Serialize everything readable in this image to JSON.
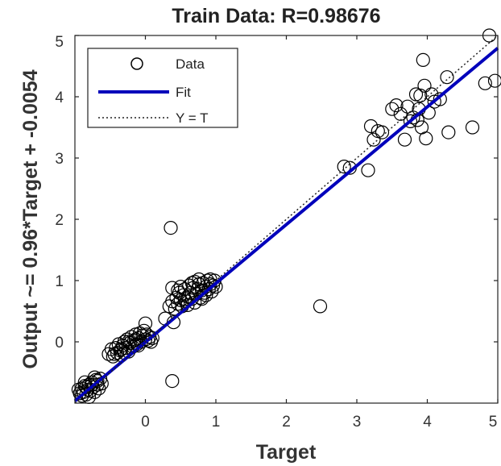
{
  "chart_data": {
    "type": "scatter",
    "title": "Train Data: R=0.98676",
    "xlabel": "Target",
    "ylabel": "Output ~= 0.96*Target + -0.0054",
    "xlim": [
      -1,
      5
    ],
    "ylim": [
      -1,
      5
    ],
    "xticks": [
      "0",
      "1",
      "2",
      "3",
      "4",
      "5"
    ],
    "yticks": [
      "0",
      "1",
      "2",
      "3",
      "4",
      "5"
    ],
    "grid": false,
    "legend_position": "top-left",
    "legend": [
      "Data",
      "Fit",
      "Y = T"
    ],
    "fit": {
      "slope": 0.96,
      "intercept": -0.0054
    },
    "series": [
      {
        "name": "Data",
        "marker": "circle-open",
        "color": "#000000",
        "points": [
          [
            -0.95,
            -0.78
          ],
          [
            -0.93,
            -0.84
          ],
          [
            -0.9,
            -0.76
          ],
          [
            -0.88,
            -0.82
          ],
          [
            -0.86,
            -0.72
          ],
          [
            -0.84,
            -0.86
          ],
          [
            -0.82,
            -0.78
          ],
          [
            -0.8,
            -0.7
          ],
          [
            -0.78,
            -0.8
          ],
          [
            -0.76,
            -0.66
          ],
          [
            -0.74,
            -0.74
          ],
          [
            -0.72,
            -0.82
          ],
          [
            -0.7,
            -0.62
          ],
          [
            -0.68,
            -0.7
          ],
          [
            -0.66,
            -0.76
          ],
          [
            -0.64,
            -0.6
          ],
          [
            -0.62,
            -0.68
          ],
          [
            -0.72,
            -0.58
          ],
          [
            -0.86,
            -0.66
          ],
          [
            -0.9,
            -0.88
          ],
          [
            -0.8,
            -0.9
          ],
          [
            -0.68,
            -0.64
          ],
          [
            -0.76,
            -0.7
          ],
          [
            -0.84,
            -0.74
          ],
          [
            -0.52,
            -0.2
          ],
          [
            -0.48,
            -0.12
          ],
          [
            -0.46,
            -0.24
          ],
          [
            -0.42,
            -0.1
          ],
          [
            -0.4,
            -0.18
          ],
          [
            -0.38,
            -0.04
          ],
          [
            -0.36,
            -0.14
          ],
          [
            -0.34,
            -0.22
          ],
          [
            -0.32,
            -0.06
          ],
          [
            -0.3,
            0.0
          ],
          [
            -0.28,
            -0.1
          ],
          [
            -0.26,
            0.04
          ],
          [
            -0.24,
            -0.16
          ],
          [
            -0.22,
            -0.02
          ],
          [
            -0.2,
            0.08
          ],
          [
            -0.18,
            -0.08
          ],
          [
            -0.16,
            0.02
          ],
          [
            -0.14,
            0.12
          ],
          [
            -0.12,
            -0.04
          ],
          [
            -0.1,
            0.06
          ],
          [
            -0.08,
            0.14
          ],
          [
            -0.06,
            0.0
          ],
          [
            -0.04,
            0.1
          ],
          [
            -0.02,
            0.18
          ],
          [
            0.0,
            0.04
          ],
          [
            0.02,
            0.12
          ],
          [
            0.04,
            0.02
          ],
          [
            0.06,
            0.08
          ],
          [
            0.08,
            0.0
          ],
          [
            0.1,
            0.06
          ],
          [
            -0.44,
            -0.2
          ],
          [
            -0.34,
            -0.12
          ],
          [
            -0.24,
            0.0
          ],
          [
            -0.14,
            0.04
          ],
          [
            -0.3,
            -0.18
          ],
          [
            -0.1,
            -0.06
          ],
          [
            0.0,
            0.3
          ],
          [
            0.28,
            0.38
          ],
          [
            0.4,
            0.32
          ],
          [
            0.38,
            0.88
          ],
          [
            0.36,
            1.86
          ],
          [
            0.38,
            -0.64
          ],
          [
            0.34,
            0.58
          ],
          [
            0.38,
            0.66
          ],
          [
            0.42,
            0.54
          ],
          [
            0.44,
            0.72
          ],
          [
            0.46,
            0.62
          ],
          [
            0.48,
            0.8
          ],
          [
            0.5,
            0.68
          ],
          [
            0.52,
            0.58
          ],
          [
            0.54,
            0.76
          ],
          [
            0.56,
            0.86
          ],
          [
            0.58,
            0.66
          ],
          [
            0.6,
            0.74
          ],
          [
            0.62,
            0.92
          ],
          [
            0.64,
            0.8
          ],
          [
            0.66,
            0.7
          ],
          [
            0.68,
            0.88
          ],
          [
            0.7,
            0.98
          ],
          [
            0.72,
            0.78
          ],
          [
            0.74,
            0.86
          ],
          [
            0.76,
            0.94
          ],
          [
            0.78,
            0.72
          ],
          [
            0.8,
            0.84
          ],
          [
            0.82,
            0.96
          ],
          [
            0.84,
            0.8
          ],
          [
            0.86,
            0.9
          ],
          [
            0.88,
            1.0
          ],
          [
            0.9,
            0.86
          ],
          [
            0.92,
            0.94
          ],
          [
            0.94,
            0.82
          ],
          [
            0.96,
            0.92
          ],
          [
            0.98,
            1.0
          ],
          [
            1.0,
            0.9
          ],
          [
            0.5,
            0.9
          ],
          [
            0.6,
            0.6
          ],
          [
            0.7,
            0.64
          ],
          [
            0.8,
            0.7
          ],
          [
            0.66,
            0.96
          ],
          [
            0.76,
            1.02
          ],
          [
            0.86,
            0.76
          ],
          [
            0.56,
            0.7
          ],
          [
            0.92,
            1.02
          ],
          [
            0.46,
            0.84
          ],
          [
            2.48,
            0.58
          ],
          [
            2.82,
            2.86
          ],
          [
            2.9,
            2.84
          ],
          [
            3.16,
            2.8
          ],
          [
            3.2,
            3.52
          ],
          [
            3.24,
            3.3
          ],
          [
            3.3,
            3.44
          ],
          [
            3.36,
            3.42
          ],
          [
            3.5,
            3.8
          ],
          [
            3.56,
            3.86
          ],
          [
            3.62,
            3.72
          ],
          [
            3.68,
            3.3
          ],
          [
            3.72,
            3.84
          ],
          [
            3.76,
            3.6
          ],
          [
            3.8,
            3.66
          ],
          [
            3.86,
            3.62
          ],
          [
            3.9,
            4.02
          ],
          [
            3.92,
            3.5
          ],
          [
            3.94,
            4.6
          ],
          [
            3.96,
            4.18
          ],
          [
            3.98,
            3.32
          ],
          [
            4.02,
            3.74
          ],
          [
            4.06,
            4.04
          ],
          [
            4.1,
            3.92
          ],
          [
            4.18,
            3.96
          ],
          [
            4.28,
            4.32
          ],
          [
            4.3,
            3.42
          ],
          [
            4.64,
            3.5
          ],
          [
            4.82,
            4.22
          ],
          [
            4.88,
            5.0
          ],
          [
            4.96,
            4.26
          ],
          [
            3.84,
            4.04
          ],
          [
            3.88,
            3.8
          ]
        ]
      }
    ]
  }
}
